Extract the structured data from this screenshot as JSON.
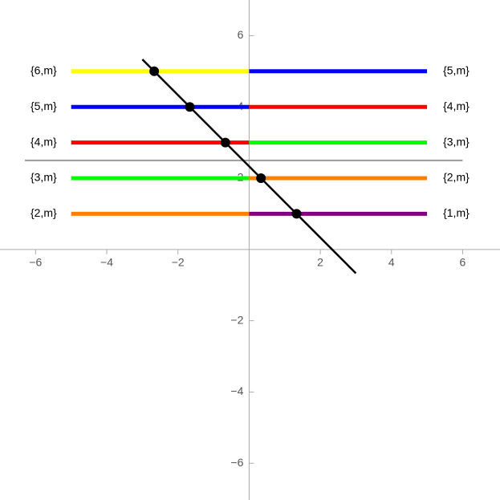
{
  "chart_data": {
    "type": "line",
    "xlim": [
      -7,
      7.05
    ],
    "ylim": [
      -7.03,
      7
    ],
    "xticks": [
      {
        "value": -6,
        "label": "−6"
      },
      {
        "value": -4,
        "label": "−4"
      },
      {
        "value": -2,
        "label": "−2"
      },
      2,
      4,
      6
    ],
    "yticks": [
      {
        "value": -6,
        "label": "−6"
      },
      {
        "value": -4,
        "label": "−4"
      },
      {
        "value": -2,
        "label": "−2"
      },
      2,
      4,
      6
    ],
    "segments": [
      {
        "name": "{6,m}",
        "color": "#ffff00",
        "label_position": "left",
        "x": [
          -5,
          0
        ],
        "values": [
          5,
          5
        ]
      },
      {
        "name": "{5,m}",
        "color": "#0000ff",
        "label_position": "left",
        "x": [
          -5,
          0
        ],
        "values": [
          4,
          4
        ]
      },
      {
        "name": "{4,m}",
        "color": "#ff0000",
        "label_position": "left",
        "x": [
          -5,
          0
        ],
        "values": [
          3,
          3
        ]
      },
      {
        "name": "{3,m}",
        "color": "#00ff00",
        "label_position": "left",
        "x": [
          -5,
          0
        ],
        "values": [
          2,
          2
        ]
      },
      {
        "name": "{2,m}",
        "color": "#ff8000",
        "label_position": "left",
        "x": [
          -5,
          0
        ],
        "values": [
          1,
          1
        ]
      },
      {
        "name": "{5,m}",
        "color": "#0000ff",
        "label_position": "right",
        "x": [
          0,
          5
        ],
        "values": [
          5,
          5
        ]
      },
      {
        "name": "{4,m}",
        "color": "#ff0000",
        "label_position": "right",
        "x": [
          0,
          5
        ],
        "values": [
          4,
          4
        ]
      },
      {
        "name": "{3,m}",
        "color": "#00ff00",
        "label_position": "right",
        "x": [
          0,
          5
        ],
        "values": [
          3,
          3
        ]
      },
      {
        "name": "{2,m}",
        "color": "#ff8000",
        "label_position": "right",
        "x": [
          0,
          5
        ],
        "values": [
          2,
          2
        ]
      },
      {
        "name": "{1,m}",
        "color": "#800080",
        "label_position": "right",
        "x": [
          0,
          5
        ],
        "values": [
          1,
          1
        ]
      }
    ],
    "reference_line": {
      "color": "#999999",
      "x": [
        -6.3,
        6
      ],
      "values": [
        2.5,
        2.5
      ]
    },
    "line": {
      "color": "#000000",
      "x": [
        -3,
        3
      ],
      "values": [
        5.333,
        -0.667
      ]
    },
    "points": {
      "color": "#000000",
      "x": [
        -2.667,
        -1.667,
        -0.667,
        0.333,
        1.333
      ],
      "values": [
        5,
        4,
        3,
        2,
        1
      ]
    }
  }
}
